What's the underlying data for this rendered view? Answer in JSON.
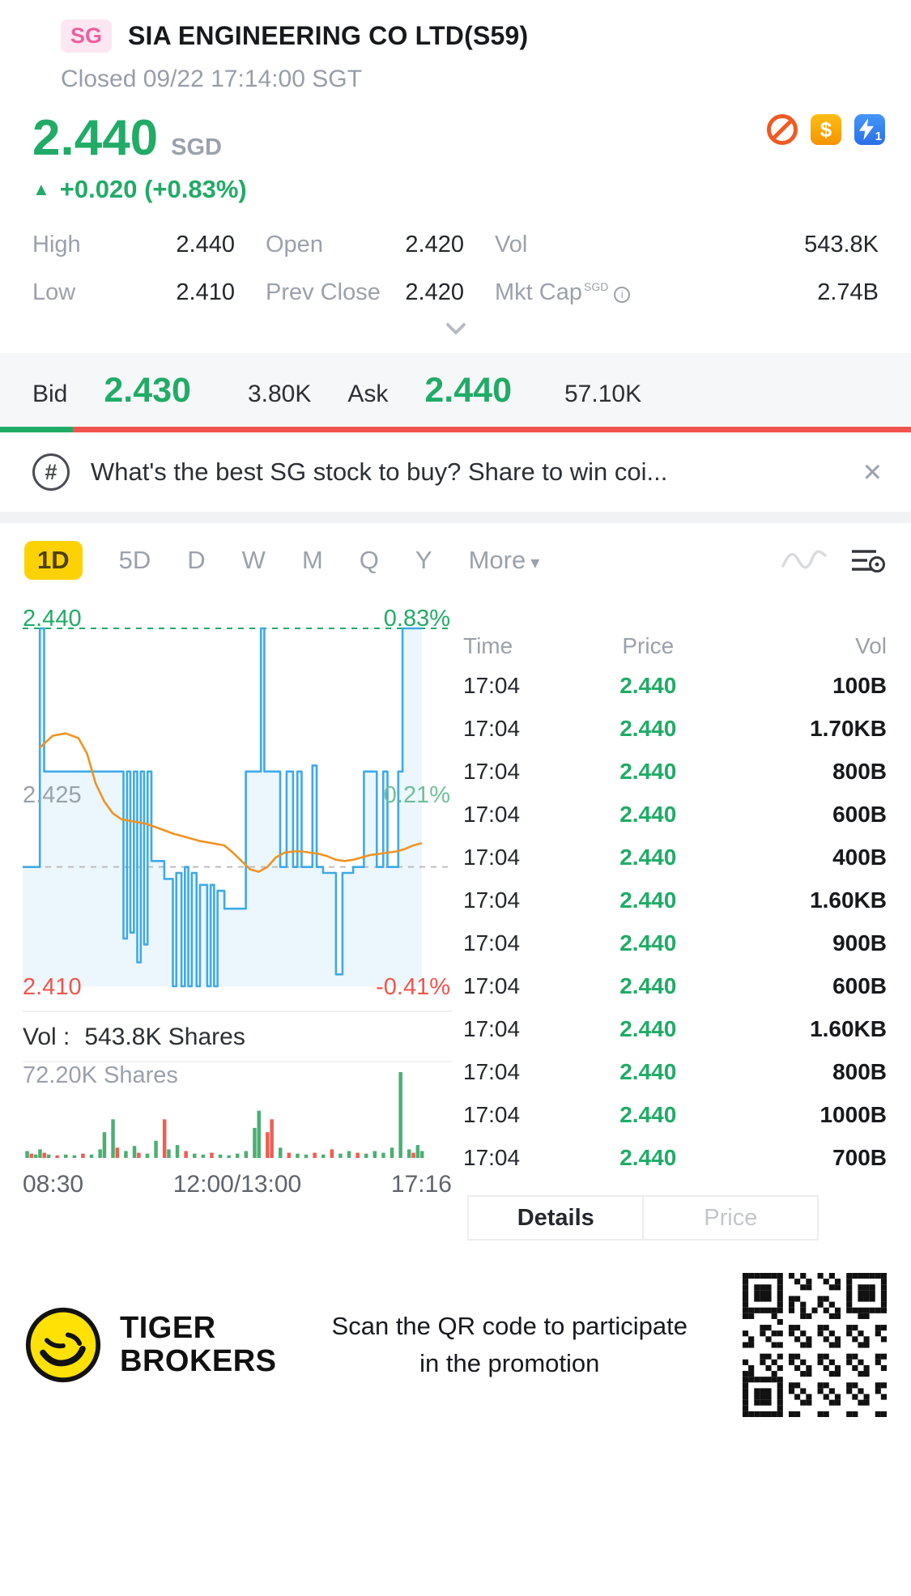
{
  "header": {
    "badge": "SG",
    "title": "SIA ENGINEERING CO LTD(S59)",
    "status": "Closed 09/22 17:14:00 SGT"
  },
  "quote": {
    "price": "2.440",
    "currency": "SGD",
    "change": "+0.020 (+0.83%)",
    "stats": [
      {
        "label": "High",
        "value": "2.440"
      },
      {
        "label": "Open",
        "value": "2.420"
      },
      {
        "label": "Vol",
        "value": "543.8K"
      },
      {
        "label": "Low",
        "value": "2.410"
      },
      {
        "label": "Prev Close",
        "value": "2.420"
      },
      {
        "label": "Mkt Cap",
        "sup": "SGD",
        "info": true,
        "value": "2.74B"
      }
    ]
  },
  "bidask": {
    "bid_label": "Bid",
    "bid_price": "2.430",
    "bid_size": "3.80K",
    "ask_label": "Ask",
    "ask_price": "2.440",
    "ask_size": "57.10K",
    "bid_ratio_pct": 8
  },
  "promo": {
    "text": "What's the best SG stock to buy? Share to win coi..."
  },
  "period_tabs": [
    {
      "label": "1D",
      "active": true
    },
    {
      "label": "5D"
    },
    {
      "label": "D"
    },
    {
      "label": "W"
    },
    {
      "label": "M"
    },
    {
      "label": "Q"
    },
    {
      "label": "Y"
    },
    {
      "label": "More",
      "caret": true
    }
  ],
  "icons": {
    "change_up": "▲",
    "dividend": "$",
    "hash": "#",
    "close": "×",
    "more_caret": "▾",
    "info": "i",
    "flash_badge": "1"
  },
  "colors": {
    "green": "#21ab67",
    "red": "#f0554d",
    "blue_line": "#3fa9e8",
    "orange_line": "#ef9322",
    "tab_yellow": "#fdd205",
    "badge_pink": "#ee5f9e"
  },
  "chart_data": [
    {
      "type": "line",
      "title": "1D intraday price",
      "ylim": [
        2.41,
        2.44
      ],
      "prev_close": 2.42,
      "labels": {
        "top_price": "2.440",
        "top_pct": "0.83%",
        "mid_price": "2.425",
        "mid_pct": "0.21%",
        "bottom_price": "2.410",
        "bottom_pct": "-0.41%"
      },
      "x_ticks": [
        "08:30",
        "12:00/13:00",
        "17:16"
      ],
      "series": [
        {
          "name": "price",
          "color": "#3fa9e8",
          "points": [
            [
              0,
              2.42
            ],
            [
              4,
              2.42
            ],
            [
              4,
              2.44
            ],
            [
              5,
              2.44
            ],
            [
              5,
              2.428
            ],
            [
              23.5,
              2.428
            ],
            [
              23.5,
              2.414
            ],
            [
              24.3,
              2.414
            ],
            [
              24.3,
              2.428
            ],
            [
              25.1,
              2.428
            ],
            [
              25.1,
              2.4145
            ],
            [
              25.9,
              2.4145
            ],
            [
              25.9,
              2.428
            ],
            [
              26.7,
              2.428
            ],
            [
              26.7,
              2.412
            ],
            [
              27.5,
              2.412
            ],
            [
              27.5,
              2.428
            ],
            [
              28.3,
              2.428
            ],
            [
              28.3,
              2.4135
            ],
            [
              29.1,
              2.4135
            ],
            [
              29.1,
              2.428
            ],
            [
              30,
              2.428
            ],
            [
              30,
              2.4205
            ],
            [
              33,
              2.4205
            ],
            [
              33,
              2.419
            ],
            [
              35,
              2.419
            ],
            [
              35,
              2.41
            ],
            [
              35.8,
              2.41
            ],
            [
              35.8,
              2.4195
            ],
            [
              37,
              2.4195
            ],
            [
              37,
              2.41
            ],
            [
              37.8,
              2.41
            ],
            [
              37.8,
              2.42
            ],
            [
              38.6,
              2.42
            ],
            [
              38.6,
              2.41
            ],
            [
              39.4,
              2.41
            ],
            [
              39.4,
              2.4195
            ],
            [
              40.5,
              2.4195
            ],
            [
              40.5,
              2.41
            ],
            [
              41.3,
              2.41
            ],
            [
              41.3,
              2.4185
            ],
            [
              43,
              2.4185
            ],
            [
              43,
              2.41
            ],
            [
              43.8,
              2.41
            ],
            [
              43.8,
              2.4185
            ],
            [
              44.6,
              2.4185
            ],
            [
              44.6,
              2.41
            ],
            [
              45.4,
              2.41
            ],
            [
              45.4,
              2.418
            ],
            [
              47,
              2.418
            ],
            [
              47,
              2.4165
            ],
            [
              52,
              2.4165
            ],
            [
              52,
              2.428
            ],
            [
              55.5,
              2.428
            ],
            [
              55.5,
              2.44
            ],
            [
              56.3,
              2.44
            ],
            [
              56.3,
              2.428
            ],
            [
              60,
              2.428
            ],
            [
              60,
              2.42
            ],
            [
              61.5,
              2.42
            ],
            [
              61.5,
              2.428
            ],
            [
              63,
              2.428
            ],
            [
              63,
              2.42
            ],
            [
              64,
              2.42
            ],
            [
              64,
              2.428
            ],
            [
              65,
              2.428
            ],
            [
              65,
              2.42
            ],
            [
              67.5,
              2.42
            ],
            [
              67.5,
              2.4285
            ],
            [
              68.5,
              2.4285
            ],
            [
              68.5,
              2.42
            ],
            [
              70,
              2.42
            ],
            [
              70,
              2.4195
            ],
            [
              73,
              2.4195
            ],
            [
              73,
              2.411
            ],
            [
              74.5,
              2.411
            ],
            [
              74.5,
              2.4195
            ],
            [
              77,
              2.4195
            ],
            [
              77,
              2.42
            ],
            [
              79.5,
              2.42
            ],
            [
              79.5,
              2.428
            ],
            [
              82.5,
              2.428
            ],
            [
              82.5,
              2.42
            ],
            [
              84,
              2.42
            ],
            [
              84,
              2.428
            ],
            [
              85,
              2.428
            ],
            [
              85,
              2.42
            ],
            [
              87.5,
              2.42
            ],
            [
              87.5,
              2.428
            ],
            [
              88.5,
              2.428
            ],
            [
              88.5,
              2.44
            ],
            [
              93,
              2.44
            ]
          ]
        },
        {
          "name": "avg",
          "color": "#ef9322",
          "points": [
            [
              4,
              2.43
            ],
            [
              7,
              2.431
            ],
            [
              10,
              2.4312
            ],
            [
              13,
              2.4308
            ],
            [
              15,
              2.4295
            ],
            [
              17,
              2.427
            ],
            [
              19,
              2.4255
            ],
            [
              21,
              2.4245
            ],
            [
              23,
              2.424
            ],
            [
              26,
              2.4238
            ],
            [
              29,
              2.4236
            ],
            [
              32,
              2.4232
            ],
            [
              35,
              2.4228
            ],
            [
              38,
              2.4225
            ],
            [
              41,
              2.4222
            ],
            [
              44,
              2.422
            ],
            [
              47,
              2.4218
            ],
            [
              49,
              2.4212
            ],
            [
              51,
              2.4205
            ],
            [
              53,
              2.4198
            ],
            [
              55,
              2.4196
            ],
            [
              57,
              2.42
            ],
            [
              59,
              2.4208
            ],
            [
              61,
              2.4212
            ],
            [
              63,
              2.4213
            ],
            [
              65,
              2.4213
            ],
            [
              67,
              2.4212
            ],
            [
              69,
              2.4211
            ],
            [
              71,
              2.4209
            ],
            [
              73,
              2.4206
            ],
            [
              75,
              2.4205
            ],
            [
              77,
              2.4206
            ],
            [
              79,
              2.4208
            ],
            [
              81,
              2.421
            ],
            [
              83,
              2.4211
            ],
            [
              85,
              2.4212
            ],
            [
              87,
              2.4213
            ],
            [
              89,
              2.4215
            ],
            [
              91,
              2.4218
            ],
            [
              93,
              2.422
            ]
          ]
        }
      ]
    },
    {
      "type": "bar",
      "title": "volume",
      "header_label": "Vol :",
      "header_value": "543.8K Shares",
      "axis_max_label": "72.20K Shares",
      "bars": [
        [
          1,
          0.08,
          "g"
        ],
        [
          2,
          0.05,
          "r"
        ],
        [
          3,
          0.04,
          "g"
        ],
        [
          4,
          0.1,
          "g"
        ],
        [
          5,
          0.06,
          "r"
        ],
        [
          6,
          0.04,
          "g"
        ],
        [
          8,
          0.03,
          "r"
        ],
        [
          10,
          0.04,
          "g"
        ],
        [
          12,
          0.03,
          "g"
        ],
        [
          14,
          0.05,
          "r"
        ],
        [
          16,
          0.04,
          "g"
        ],
        [
          18,
          0.1,
          "g"
        ],
        [
          19,
          0.3,
          "g"
        ],
        [
          21,
          0.45,
          "g"
        ],
        [
          22,
          0.12,
          "r"
        ],
        [
          24,
          0.08,
          "g"
        ],
        [
          26,
          0.14,
          "g"
        ],
        [
          27,
          0.06,
          "r"
        ],
        [
          29,
          0.05,
          "g"
        ],
        [
          31,
          0.2,
          "g"
        ],
        [
          33,
          0.45,
          "r"
        ],
        [
          34,
          0.1,
          "g"
        ],
        [
          36,
          0.15,
          "g"
        ],
        [
          38,
          0.08,
          "r"
        ],
        [
          40,
          0.05,
          "g"
        ],
        [
          42,
          0.04,
          "g"
        ],
        [
          44,
          0.06,
          "r"
        ],
        [
          46,
          0.04,
          "g"
        ],
        [
          48,
          0.03,
          "g"
        ],
        [
          50,
          0.05,
          "g"
        ],
        [
          52,
          0.08,
          "g"
        ],
        [
          54,
          0.35,
          "g"
        ],
        [
          55,
          0.55,
          "g"
        ],
        [
          57,
          0.3,
          "r"
        ],
        [
          58,
          0.45,
          "r"
        ],
        [
          60,
          0.12,
          "g"
        ],
        [
          62,
          0.06,
          "r"
        ],
        [
          64,
          0.05,
          "g"
        ],
        [
          66,
          0.04,
          "g"
        ],
        [
          68,
          0.06,
          "r"
        ],
        [
          70,
          0.04,
          "g"
        ],
        [
          72,
          0.1,
          "r"
        ],
        [
          74,
          0.05,
          "g"
        ],
        [
          76,
          0.08,
          "g"
        ],
        [
          78,
          0.06,
          "r"
        ],
        [
          80,
          0.05,
          "g"
        ],
        [
          82,
          0.08,
          "g"
        ],
        [
          84,
          0.06,
          "g"
        ],
        [
          86,
          0.12,
          "g"
        ],
        [
          88,
          1.0,
          "g"
        ],
        [
          90,
          0.1,
          "g"
        ],
        [
          91,
          0.06,
          "r"
        ],
        [
          92,
          0.15,
          "g"
        ],
        [
          93,
          0.08,
          "g"
        ]
      ]
    }
  ],
  "table": {
    "headers": [
      "Time",
      "Price",
      "Vol"
    ],
    "rows": [
      {
        "time": "17:04",
        "price": "2.440",
        "vol": "100B"
      },
      {
        "time": "17:04",
        "price": "2.440",
        "vol": "1.70KB"
      },
      {
        "time": "17:04",
        "price": "2.440",
        "vol": "800B"
      },
      {
        "time": "17:04",
        "price": "2.440",
        "vol": "600B"
      },
      {
        "time": "17:04",
        "price": "2.440",
        "vol": "400B"
      },
      {
        "time": "17:04",
        "price": "2.440",
        "vol": "1.60KB"
      },
      {
        "time": "17:04",
        "price": "2.440",
        "vol": "900B"
      },
      {
        "time": "17:04",
        "price": "2.440",
        "vol": "600B"
      },
      {
        "time": "17:04",
        "price": "2.440",
        "vol": "1.60KB"
      },
      {
        "time": "17:04",
        "price": "2.440",
        "vol": "800B"
      },
      {
        "time": "17:04",
        "price": "2.440",
        "vol": "1000B"
      },
      {
        "time": "17:04",
        "price": "2.440",
        "vol": "700B"
      }
    ],
    "tabs": [
      {
        "label": "Details",
        "active": true
      },
      {
        "label": "Price",
        "active": false
      }
    ]
  },
  "footer": {
    "brand_line1": "TIGER",
    "brand_line2": "BROKERS",
    "promo_text": "Scan the QR code to participate in the promotion"
  }
}
